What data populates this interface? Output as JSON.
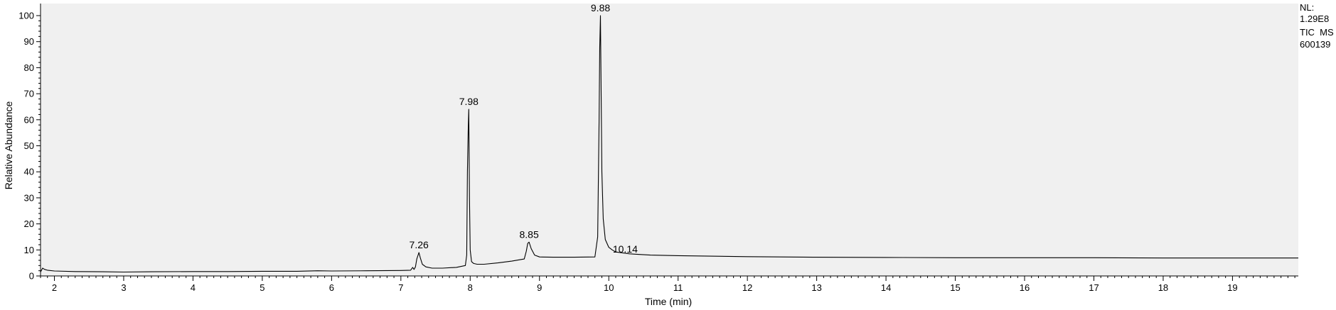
{
  "chart_data": {
    "type": "line",
    "title": "",
    "xlabel": "Time (min)",
    "ylabel": "Relative Abundance",
    "xlim": [
      1.8,
      19.95
    ],
    "ylim": [
      0,
      100
    ],
    "x_ticks": [
      2,
      3,
      4,
      5,
      6,
      7,
      8,
      9,
      10,
      11,
      12,
      13,
      14,
      15,
      16,
      17,
      18,
      19
    ],
    "y_ticks": [
      0,
      10,
      20,
      30,
      40,
      50,
      60,
      70,
      80,
      90,
      100
    ],
    "grid": false,
    "legend": "none",
    "info": {
      "nl_label": "NL:",
      "nl_value": "1.29E8",
      "trace": "TIC  MS",
      "sample": "600139"
    },
    "peak_labels": [
      {
        "x": 7.26,
        "y": 9,
        "text": "7.26"
      },
      {
        "x": 7.98,
        "y": 64,
        "text": "7.98"
      },
      {
        "x": 8.85,
        "y": 13,
        "text": "8.85"
      },
      {
        "x": 9.88,
        "y": 100,
        "text": "9.88"
      },
      {
        "x": 10.14,
        "y": 8.5,
        "text": "10.14"
      }
    ],
    "series": [
      {
        "x": [
          1.8,
          1.83,
          1.86,
          1.9,
          2.0,
          2.3,
          2.7,
          3.0,
          3.4,
          4.0,
          4.5,
          5.0,
          5.5,
          5.8,
          6.0,
          6.5,
          7.0,
          7.14,
          7.17,
          7.19,
          7.21,
          7.23,
          7.26,
          7.28,
          7.31,
          7.36,
          7.45,
          7.6,
          7.8,
          7.93,
          7.95,
          7.96,
          7.97,
          7.98,
          7.99,
          8.0,
          8.02,
          8.05,
          8.1,
          8.2,
          8.4,
          8.6,
          8.78,
          8.81,
          8.83,
          8.85,
          8.88,
          8.93,
          9.0,
          9.2,
          9.5,
          9.8,
          9.84,
          9.86,
          9.87,
          9.88,
          9.89,
          9.9,
          9.92,
          9.95,
          10.0,
          10.05,
          10.1,
          10.3,
          10.6,
          11.0,
          12.0,
          13.0,
          14.0,
          15.0,
          16.0,
          17.0,
          18.0,
          19.0,
          19.95
        ],
        "y": [
          1.5,
          3.0,
          2.5,
          2.2,
          1.9,
          1.7,
          1.6,
          1.5,
          1.6,
          1.7,
          1.7,
          1.8,
          1.8,
          2.0,
          1.9,
          2.0,
          2.1,
          2.2,
          3.3,
          2.5,
          3.5,
          6.5,
          9.0,
          7.0,
          4.5,
          3.5,
          3.0,
          3.0,
          3.3,
          4.0,
          8.0,
          40.0,
          55.0,
          64.0,
          30.0,
          10.0,
          5.5,
          4.8,
          4.5,
          4.5,
          5.0,
          5.7,
          6.5,
          9.5,
          12.5,
          13.0,
          10.5,
          8.0,
          7.3,
          7.2,
          7.2,
          7.3,
          15.0,
          60.0,
          88.0,
          100.0,
          70.0,
          40.0,
          22.0,
          14.0,
          11.0,
          10.0,
          9.2,
          8.5,
          8.0,
          7.8,
          7.4,
          7.2,
          7.1,
          7.0,
          7.0,
          7.0,
          6.9,
          6.9,
          6.9
        ]
      }
    ]
  }
}
